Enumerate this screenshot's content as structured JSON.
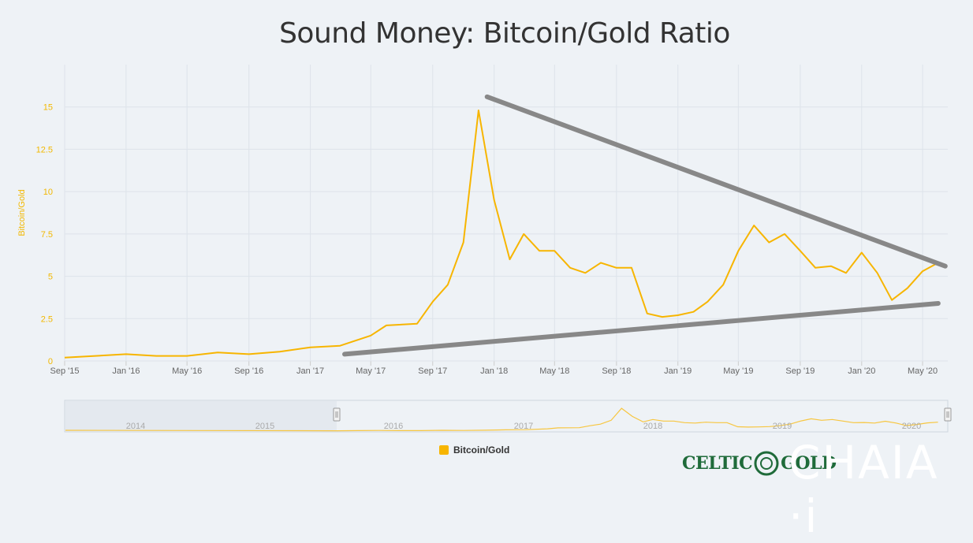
{
  "title": "Sound Money: Bitcoin/Gold Ratio",
  "chart_data": {
    "type": "line",
    "title": "Sound Money: Bitcoin/Gold Ratio",
    "ylabel": "Bitcoin/Gold",
    "xlabel": "",
    "ylim": [
      0,
      17.5
    ],
    "yticks": [
      "0",
      "2.5",
      "5",
      "7.5",
      "10",
      "12.5",
      "15"
    ],
    "x_ticks": [
      "Sep '15",
      "Jan '16",
      "May '16",
      "Sep '16",
      "Jan '17",
      "May '17",
      "Sep '17",
      "Jan '18",
      "May '18",
      "Sep '18",
      "Jan '19",
      "May '19",
      "Sep '19",
      "Jan '20",
      "May '20"
    ],
    "x_range": [
      "2015-09",
      "2020-06"
    ],
    "grid": true,
    "series": [
      {
        "name": "Bitcoin/Gold",
        "color": "#f7b500",
        "x": [
          "2015-09",
          "2015-11",
          "2016-01",
          "2016-03",
          "2016-05",
          "2016-07",
          "2016-09",
          "2016-11",
          "2017-01",
          "2017-03",
          "2017-05",
          "2017-06",
          "2017-08",
          "2017-09",
          "2017-10",
          "2017-11",
          "2017-12",
          "2018-01",
          "2018-02",
          "2018-03",
          "2018-04",
          "2018-05",
          "2018-06",
          "2018-07",
          "2018-08",
          "2018-09",
          "2018-10",
          "2018-11",
          "2018-12",
          "2019-01",
          "2019-02",
          "2019-03",
          "2019-04",
          "2019-05",
          "2019-06",
          "2019-07",
          "2019-08",
          "2019-09",
          "2019-10",
          "2019-11",
          "2019-12",
          "2020-01",
          "2020-02",
          "2020-03",
          "2020-04",
          "2020-05",
          "2020-06"
        ],
        "values": [
          0.2,
          0.3,
          0.4,
          0.3,
          0.3,
          0.5,
          0.4,
          0.55,
          0.8,
          0.9,
          1.5,
          2.1,
          2.2,
          3.5,
          4.5,
          7.0,
          14.8,
          9.5,
          6.0,
          7.5,
          6.5,
          6.5,
          5.5,
          5.2,
          5.8,
          5.5,
          5.5,
          2.8,
          2.6,
          2.7,
          2.9,
          3.5,
          4.5,
          6.5,
          8.0,
          7.0,
          7.5,
          6.5,
          5.5,
          5.6,
          5.2,
          6.4,
          5.2,
          3.6,
          4.3,
          5.3,
          5.8
        ]
      }
    ],
    "trendlines": [
      {
        "name": "resistance",
        "color": "#888888",
        "from": {
          "x": "2017-12-18",
          "y": 15.6
        },
        "to": {
          "x": "2020-06-15",
          "y": 5.6
        }
      },
      {
        "name": "support",
        "color": "#888888",
        "from": {
          "x": "2017-03-10",
          "y": 0.4
        },
        "to": {
          "x": "2020-06-01",
          "y": 3.4
        }
      }
    ],
    "navigator": {
      "year_labels": [
        "2014",
        "2015",
        "2016",
        "2017",
        "2018",
        "2019",
        "2020"
      ]
    }
  },
  "legend": {
    "label": "Bitcoin/Gold",
    "color": "#f7b500"
  },
  "logos": {
    "celticgold": "CELTICGOLD",
    "chaia": "CHAIA",
    "chaia_suffix": "·i"
  }
}
